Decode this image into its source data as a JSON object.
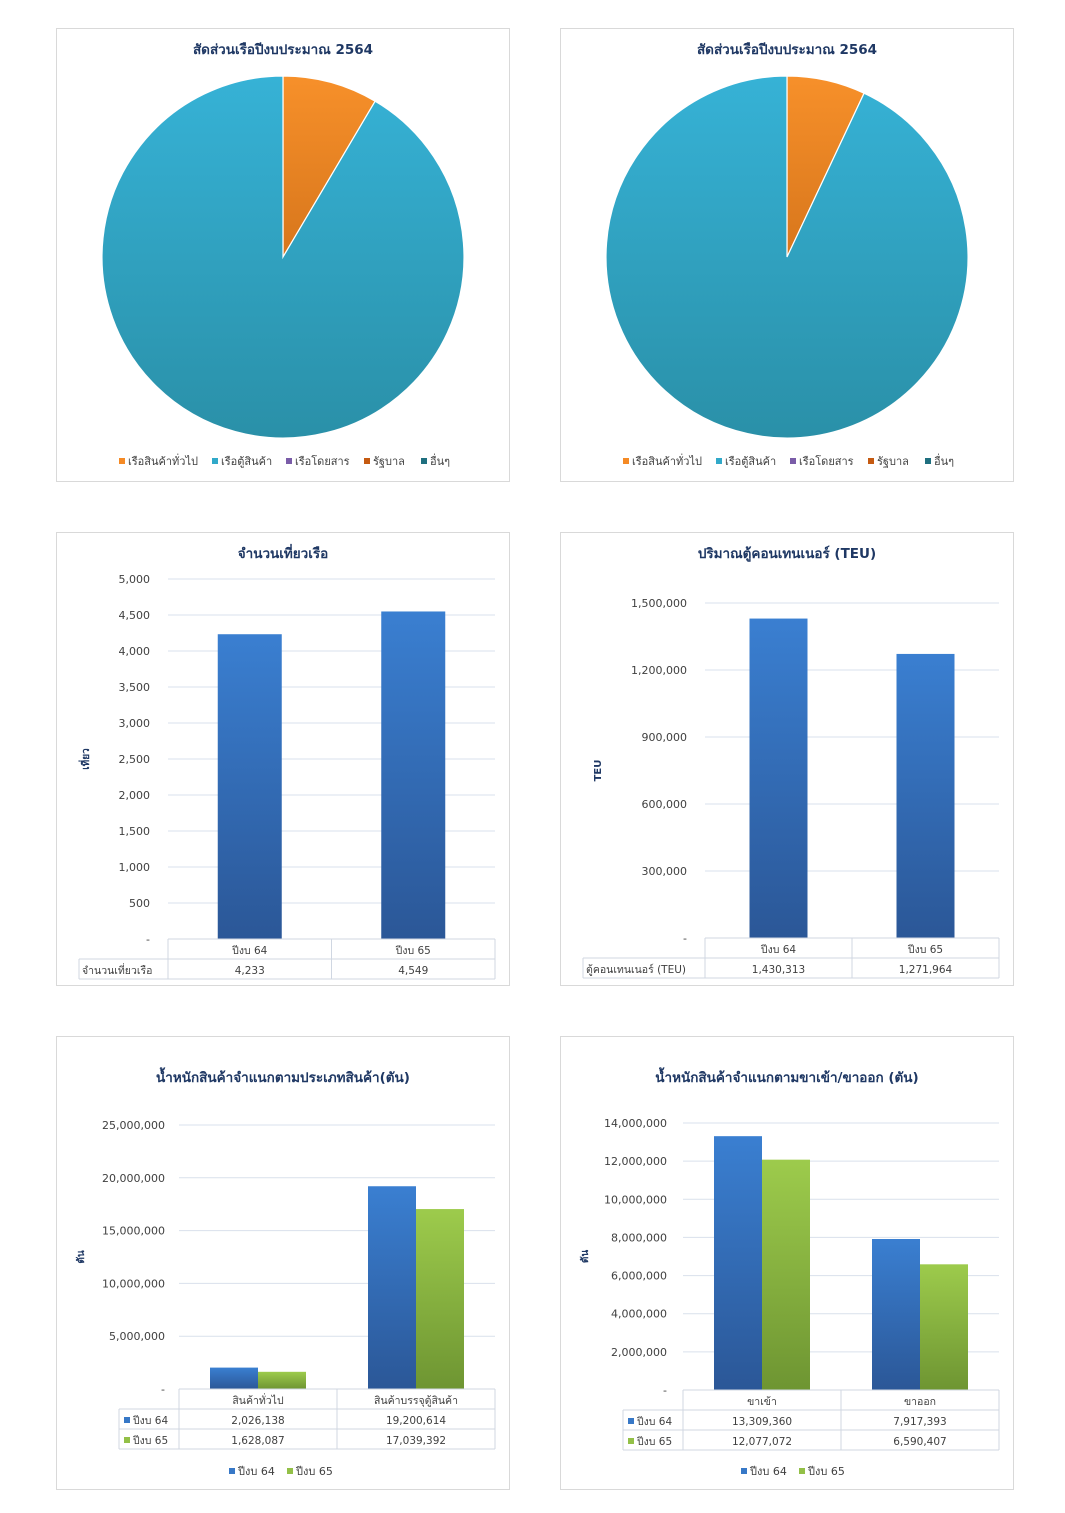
{
  "colors": {
    "orange": "#f58a25",
    "teal": "#31a9c9",
    "purple": "#7a5ca8",
    "rust": "#c55a11",
    "darkteal": "#1f6f7f",
    "blue": "#3778c7",
    "green": "#93c047",
    "grid": "#d9e1ec",
    "title": "#1f3864"
  },
  "chart_data": [
    {
      "type": "pie",
      "title": "สัดส่วนเรือปีงบประมาณ 2564",
      "labels": [
        "เรือสินค้าทั่วไป",
        "เรือตู้สินค้า",
        "เรือโดยสาร",
        "รัฐบาล",
        "อื่นๆ"
      ],
      "values": [
        8.5,
        91.5,
        0,
        0,
        0
      ],
      "legend": "bottom"
    },
    {
      "type": "pie",
      "title": "สัดส่วนเรือปีงบประมาณ 2564",
      "labels": [
        "เรือสินค้าทั่วไป",
        "เรือตู้สินค้า",
        "เรือโดยสาร",
        "รัฐบาล",
        "อื่นๆ"
      ],
      "values": [
        7,
        93,
        0,
        0,
        0
      ],
      "legend": "bottom"
    },
    {
      "type": "bar",
      "title": "จำนวนเที่ยวเรือ",
      "ylabel": "เที่ยว",
      "categories": [
        "ปีงบ 64",
        "ปีงบ 65"
      ],
      "series": [
        {
          "name": "จำนวนเที่ยวเรือ",
          "values": [
            4233,
            4549
          ],
          "labels": [
            "4,233",
            "4,549"
          ]
        }
      ],
      "ylim": [
        0,
        5000
      ],
      "yticks": [
        0,
        500,
        1000,
        1500,
        2000,
        2500,
        3000,
        3500,
        4000,
        4500,
        5000
      ],
      "ytick_labels": [
        "-",
        "500",
        "1,000",
        "1,500",
        "2,000",
        "2,500",
        "3,000",
        "3,500",
        "4,000",
        "4,500",
        "5,000"
      ],
      "grid": true,
      "data_table": true
    },
    {
      "type": "bar",
      "title": "ปริมาณตู้คอนเทนเนอร์ (TEU)",
      "ylabel": "TEU",
      "categories": [
        "ปีงบ 64",
        "ปีงบ 65"
      ],
      "series": [
        {
          "name": "ตู้คอนเทนเนอร์ (TEU)",
          "values": [
            1430313,
            1271964
          ],
          "labels": [
            "1,430,313",
            "1,271,964"
          ]
        }
      ],
      "ylim": [
        0,
        1500000
      ],
      "yticks": [
        0,
        300000,
        600000,
        900000,
        1200000,
        1500000
      ],
      "ytick_labels": [
        "-",
        "300,000",
        "600,000",
        "900,000",
        "1,200,000",
        "1,500,000"
      ],
      "grid": true,
      "data_table": true
    },
    {
      "type": "bar",
      "title": "น้ำหนักสินค้าจำแนกตามประเภทสินค้า(ตัน)",
      "ylabel": "ตัน",
      "categories": [
        "สินค้าทั่วไป",
        "สินค้าบรรจุตู้สินค้า"
      ],
      "series": [
        {
          "name": "ปีงบ 64",
          "values": [
            2026138,
            19200614
          ],
          "labels": [
            "2,026,138",
            "19,200,614"
          ]
        },
        {
          "name": "ปีงบ 65",
          "values": [
            1628087,
            17039392
          ],
          "labels": [
            "1,628,087",
            "17,039,392"
          ]
        }
      ],
      "ylim": [
        0,
        25000000
      ],
      "yticks": [
        0,
        5000000,
        10000000,
        15000000,
        20000000,
        25000000
      ],
      "ytick_labels": [
        "-",
        "5,000,000",
        "10,000,000",
        "15,000,000",
        "20,000,000",
        "25,000,000"
      ],
      "grid": true,
      "data_table": true,
      "legend": "bottom"
    },
    {
      "type": "bar",
      "title": "น้ำหนักสินค้าจำแนกตามขาเข้า/ขาออก (ตัน)",
      "ylabel": "ตัน",
      "categories": [
        "ขาเข้า",
        "ขาออก"
      ],
      "series": [
        {
          "name": "ปีงบ 64",
          "values": [
            13309360,
            7917393
          ],
          "labels": [
            "13,309,360",
            "7,917,393"
          ]
        },
        {
          "name": "ปีงบ 65",
          "values": [
            12077072,
            6590407
          ],
          "labels": [
            "12,077,072",
            "6,590,407"
          ]
        }
      ],
      "ylim": [
        0,
        14000000
      ],
      "yticks": [
        0,
        2000000,
        4000000,
        6000000,
        8000000,
        10000000,
        12000000,
        14000000
      ],
      "ytick_labels": [
        "-",
        "2,000,000",
        "4,000,000",
        "6,000,000",
        "8,000,000",
        "10,000,000",
        "12,000,000",
        "14,000,000"
      ],
      "grid": true,
      "data_table": true,
      "legend": "bottom"
    }
  ]
}
